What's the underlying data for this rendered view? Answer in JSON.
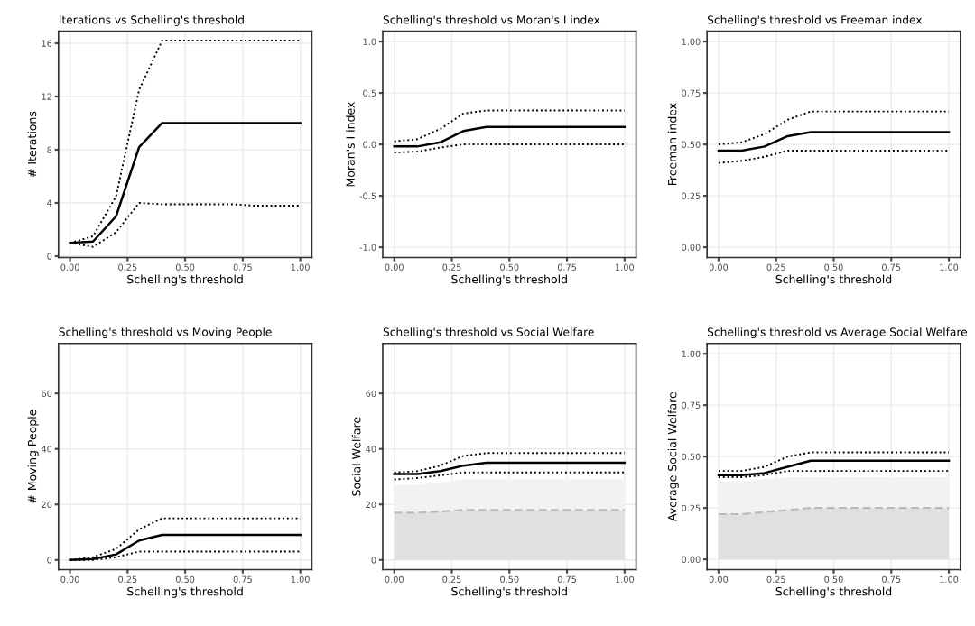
{
  "chart_data": [
    {
      "type": "line",
      "title": "Iterations vs Schelling's threshold",
      "xlabel": "Schelling's threshold",
      "ylabel": "# Iterations",
      "x": [
        0,
        0.1,
        0.2,
        0.3,
        0.4,
        0.5,
        0.6,
        0.7,
        0.8,
        0.9,
        1.0
      ],
      "xlim": [
        -0.05,
        1.05
      ],
      "xticks": [
        {
          "value": 0,
          "label": "0.00"
        },
        {
          "value": 0.25,
          "label": "0.25"
        },
        {
          "value": 0.5,
          "label": "0.50"
        },
        {
          "value": 0.75,
          "label": "0.75"
        },
        {
          "value": 1.0,
          "label": "1.00"
        }
      ],
      "ylim": [
        -0.1,
        16.9
      ],
      "yticks": [
        0,
        4,
        8,
        12,
        16
      ],
      "grid": true,
      "series": [
        {
          "color": "#000000",
          "line_style": "solid",
          "values": [
            1,
            1.1,
            3,
            8.2,
            10,
            10,
            10,
            10,
            10,
            10,
            10
          ]
        },
        {
          "color": "#000000",
          "line_style": "dotted",
          "values": [
            1,
            1.5,
            4.5,
            12.5,
            16.2,
            16.2,
            16.2,
            16.2,
            16.2,
            16.2,
            16.2
          ]
        },
        {
          "color": "#000000",
          "line_style": "dotted",
          "values": [
            1,
            0.7,
            1.8,
            4,
            3.9,
            3.9,
            3.9,
            3.9,
            3.8,
            3.8,
            3.8
          ]
        }
      ]
    },
    {
      "type": "line",
      "title": "Schelling's threshold vs Moran's I index",
      "xlabel": "Schelling's threshold",
      "ylabel": "Moran's I index",
      "x": [
        0,
        0.1,
        0.2,
        0.3,
        0.4,
        0.5,
        0.6,
        0.7,
        0.8,
        0.9,
        1.0
      ],
      "xlim": [
        -0.05,
        1.05
      ],
      "xticks": [
        {
          "value": 0,
          "label": "0.00"
        },
        {
          "value": 0.25,
          "label": "0.25"
        },
        {
          "value": 0.5,
          "label": "0.50"
        },
        {
          "value": 0.75,
          "label": "0.75"
        },
        {
          "value": 1.0,
          "label": "1.00"
        }
      ],
      "ylim": [
        -1.1,
        1.1
      ],
      "yticks": [
        {
          "value": -1,
          "label": "-1.0"
        },
        {
          "value": -0.5,
          "label": "-0.5"
        },
        {
          "value": 0,
          "label": "0.0"
        },
        0.5,
        {
          "value": 1,
          "label": "1.0"
        }
      ],
      "grid": true,
      "series": [
        {
          "color": "#000000",
          "line_style": "solid",
          "values": [
            -0.02,
            -0.02,
            0.02,
            0.13,
            0.17,
            0.17,
            0.17,
            0.17,
            0.17,
            0.17,
            0.17
          ]
        },
        {
          "color": "#000000",
          "line_style": "dotted",
          "values": [
            0.03,
            0.05,
            0.15,
            0.3,
            0.33,
            0.33,
            0.33,
            0.33,
            0.33,
            0.33,
            0.33
          ]
        },
        {
          "color": "#000000",
          "line_style": "dotted",
          "values": [
            -0.08,
            -0.07,
            -0.03,
            0,
            0,
            0,
            0,
            0,
            0,
            0,
            0
          ]
        }
      ]
    },
    {
      "type": "line",
      "title": "Schelling's threshold vs Freeman index",
      "xlabel": "Schelling's threshold",
      "ylabel": "Freeman index",
      "x": [
        0,
        0.1,
        0.2,
        0.3,
        0.4,
        0.5,
        0.6,
        0.7,
        0.8,
        0.9,
        1.0
      ],
      "xlim": [
        -0.05,
        1.05
      ],
      "xticks": [
        {
          "value": 0,
          "label": "0.00"
        },
        {
          "value": 0.25,
          "label": "0.25"
        },
        {
          "value": 0.5,
          "label": "0.50"
        },
        {
          "value": 0.75,
          "label": "0.75"
        },
        {
          "value": 1.0,
          "label": "1.00"
        }
      ],
      "ylim": [
        -0.05,
        1.05
      ],
      "yticks": [
        {
          "value": 0,
          "label": "0.00"
        },
        0.25,
        {
          "value": 0.5,
          "label": "0.50"
        },
        0.75,
        {
          "value": 1,
          "label": "1.00"
        }
      ],
      "grid": true,
      "series": [
        {
          "color": "#000000",
          "line_style": "solid",
          "values": [
            0.47,
            0.47,
            0.49,
            0.54,
            0.56,
            0.56,
            0.56,
            0.56,
            0.56,
            0.56,
            0.56
          ]
        },
        {
          "color": "#000000",
          "line_style": "dotted",
          "values": [
            0.5,
            0.51,
            0.55,
            0.62,
            0.66,
            0.66,
            0.66,
            0.66,
            0.66,
            0.66,
            0.66
          ]
        },
        {
          "color": "#000000",
          "line_style": "dotted",
          "values": [
            0.41,
            0.42,
            0.44,
            0.47,
            0.47,
            0.47,
            0.47,
            0.47,
            0.47,
            0.47,
            0.47
          ]
        }
      ]
    },
    {
      "type": "line",
      "title": "Schelling's threshold vs Moving People",
      "xlabel": "Schelling's threshold",
      "ylabel": "# Moving People",
      "x": [
        0,
        0.1,
        0.2,
        0.3,
        0.4,
        0.5,
        0.6,
        0.7,
        0.8,
        0.9,
        1.0
      ],
      "xlim": [
        -0.05,
        1.05
      ],
      "xticks": [
        {
          "value": 0,
          "label": "0.00"
        },
        {
          "value": 0.25,
          "label": "0.25"
        },
        {
          "value": 0.5,
          "label": "0.50"
        },
        {
          "value": 0.75,
          "label": "0.75"
        },
        {
          "value": 1.0,
          "label": "1.00"
        }
      ],
      "ylim": [
        -3.5,
        78
      ],
      "yticks": [
        0,
        20,
        40,
        60
      ],
      "grid": true,
      "series": [
        {
          "color": "#000000",
          "line_style": "solid",
          "values": [
            0,
            0.3,
            2,
            7,
            9,
            9,
            9,
            9,
            9,
            9,
            9
          ]
        },
        {
          "color": "#000000",
          "line_style": "dotted",
          "values": [
            0,
            1,
            4,
            11,
            15,
            15,
            15,
            15,
            15,
            15,
            15
          ]
        },
        {
          "color": "#000000",
          "line_style": "dotted",
          "values": [
            0,
            0,
            1,
            3,
            3,
            3,
            3,
            3,
            3,
            3,
            3
          ]
        }
      ]
    },
    {
      "type": "line",
      "title": "Schelling's threshold vs Social Welfare",
      "xlabel": "Schelling's threshold",
      "ylabel": "Social Welfare",
      "x": [
        0,
        0.1,
        0.2,
        0.3,
        0.4,
        0.5,
        0.6,
        0.7,
        0.8,
        0.9,
        1.0
      ],
      "xlim": [
        -0.05,
        1.05
      ],
      "xticks": [
        {
          "value": 0,
          "label": "0.00"
        },
        {
          "value": 0.25,
          "label": "0.25"
        },
        {
          "value": 0.5,
          "label": "0.50"
        },
        {
          "value": 0.75,
          "label": "0.75"
        },
        {
          "value": 1.0,
          "label": "1.00"
        }
      ],
      "ylim": [
        -3.5,
        78
      ],
      "yticks": [
        0,
        20,
        40,
        60
      ],
      "grid": true,
      "series": [
        {
          "type": "area",
          "color": "#f2f2f2",
          "values": [
            27,
            27,
            28,
            29,
            29,
            29,
            29,
            29,
            29,
            29,
            29
          ]
        },
        {
          "type": "area",
          "color": "#e0e0e0",
          "line_style": "dashed",
          "values": [
            17,
            17,
            17.5,
            18,
            18,
            18,
            18,
            18,
            18,
            18,
            18
          ]
        },
        {
          "color": "#000000",
          "line_style": "solid",
          "values": [
            31,
            31,
            32,
            34,
            35,
            35,
            35,
            35,
            35,
            35,
            35
          ]
        },
        {
          "color": "#000000",
          "line_style": "dotted",
          "values": [
            31.5,
            32,
            34,
            37.5,
            38.5,
            38.5,
            38.5,
            38.5,
            38.5,
            38.5,
            38.5
          ]
        },
        {
          "color": "#000000",
          "line_style": "dotted",
          "values": [
            29,
            29.5,
            30.5,
            31.5,
            31.5,
            31.5,
            31.5,
            31.5,
            31.5,
            31.5,
            31.5
          ]
        }
      ]
    },
    {
      "type": "line",
      "title": "Schelling's threshold vs Average Social Welfare",
      "xlabel": "Schelling's threshold",
      "ylabel": "Average Social Welfare",
      "x": [
        0,
        0.1,
        0.2,
        0.3,
        0.4,
        0.5,
        0.6,
        0.7,
        0.8,
        0.9,
        1.0
      ],
      "xlim": [
        -0.05,
        1.05
      ],
      "xticks": [
        {
          "value": 0,
          "label": "0.00"
        },
        {
          "value": 0.25,
          "label": "0.25"
        },
        {
          "value": 0.5,
          "label": "0.50"
        },
        {
          "value": 0.75,
          "label": "0.75"
        },
        {
          "value": 1.0,
          "label": "1.00"
        }
      ],
      "ylim": [
        -0.05,
        1.05
      ],
      "yticks": [
        {
          "value": 0,
          "label": "0.00"
        },
        0.25,
        {
          "value": 0.5,
          "label": "0.50"
        },
        0.75,
        {
          "value": 1,
          "label": "1.00"
        }
      ],
      "grid": true,
      "series": [
        {
          "type": "area",
          "color": "#f2f2f2",
          "values": [
            0.38,
            0.38,
            0.39,
            0.4,
            0.4,
            0.4,
            0.4,
            0.4,
            0.4,
            0.4,
            0.4
          ]
        },
        {
          "type": "area",
          "color": "#e0e0e0",
          "line_style": "dashed",
          "values": [
            0.22,
            0.22,
            0.23,
            0.24,
            0.25,
            0.25,
            0.25,
            0.25,
            0.25,
            0.25,
            0.25
          ]
        },
        {
          "color": "#000000",
          "line_style": "solid",
          "values": [
            0.41,
            0.41,
            0.42,
            0.45,
            0.48,
            0.48,
            0.48,
            0.48,
            0.48,
            0.48,
            0.48
          ]
        },
        {
          "color": "#000000",
          "line_style": "dotted",
          "values": [
            0.43,
            0.43,
            0.45,
            0.5,
            0.52,
            0.52,
            0.52,
            0.52,
            0.52,
            0.52,
            0.52
          ]
        },
        {
          "color": "#000000",
          "line_style": "dotted",
          "values": [
            0.4,
            0.4,
            0.41,
            0.43,
            0.43,
            0.43,
            0.43,
            0.43,
            0.43,
            0.43,
            0.43
          ]
        }
      ]
    }
  ]
}
